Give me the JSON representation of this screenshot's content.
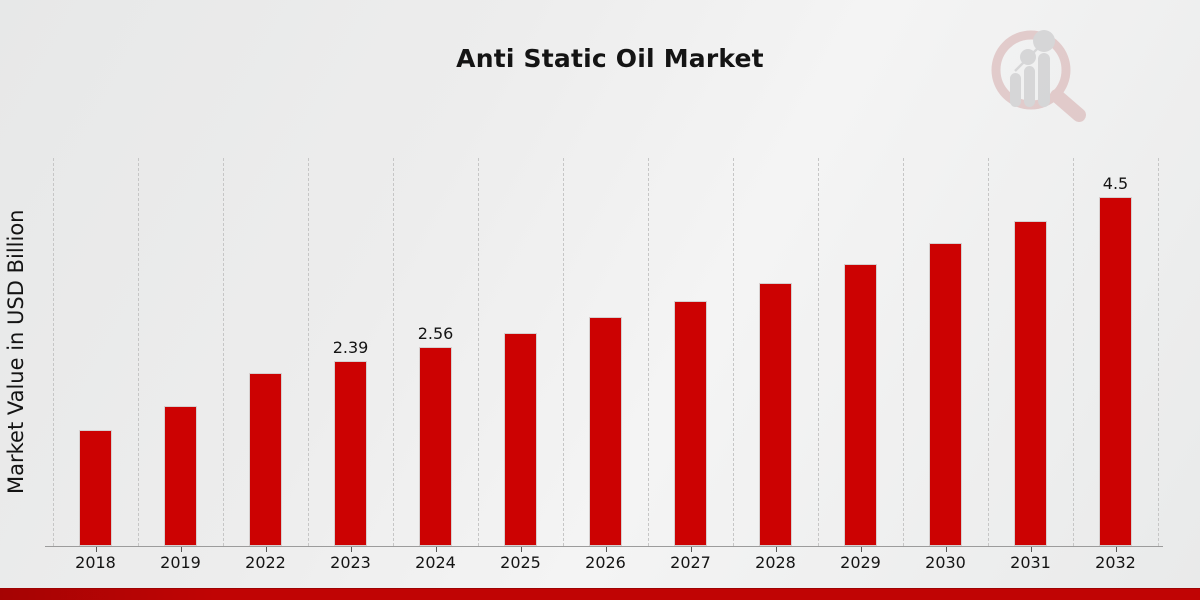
{
  "page": {
    "title": "Anti Static Oil Market"
  },
  "chart_data": {
    "type": "bar",
    "title": "Anti Static Oil Market",
    "xlabel": "",
    "ylabel": "Market Value in USD Billion",
    "categories": [
      "2018",
      "2019",
      "2022",
      "2023",
      "2024",
      "2025",
      "2026",
      "2027",
      "2028",
      "2029",
      "2030",
      "2031",
      "2032"
    ],
    "values": [
      1.5,
      1.81,
      2.23,
      2.39,
      2.56,
      2.75,
      2.95,
      3.16,
      3.39,
      3.64,
      3.91,
      4.19,
      4.5
    ],
    "data_labels": [
      "",
      "",
      "",
      "2.39",
      "2.56",
      "",
      "",
      "",
      "",
      "",
      "",
      "",
      "4.5"
    ],
    "ylim": [
      0,
      5
    ],
    "bar_color": "#cc0202",
    "grid": "vertical-dashed",
    "gridline_color": "#c6c6c6",
    "axis_color": "#9c9c9c",
    "legend": "none"
  },
  "footer": {
    "banner_color": "#c00404",
    "banner_color_dark": "#a50303"
  },
  "branding": {
    "watermark": "magnifier-bar-chart-logo",
    "ring_color": "#d3a6a6",
    "bars_color": "#bcbcbf"
  }
}
